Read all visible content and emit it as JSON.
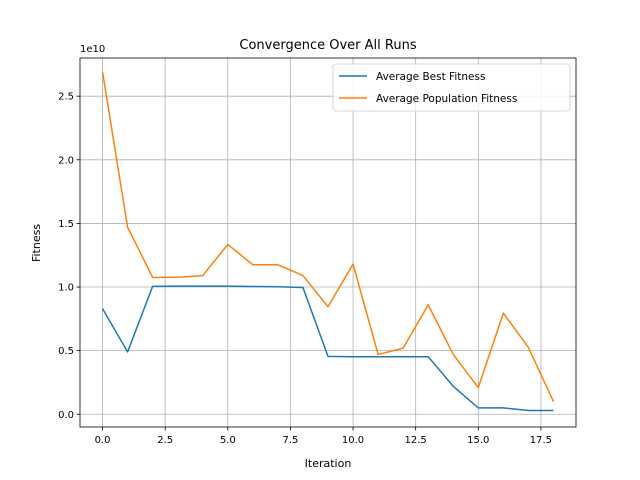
{
  "chart_data": {
    "type": "line",
    "title": "Convergence Over All Runs",
    "xlabel": "Iteration",
    "ylabel": "Fitness",
    "y_offset_label": "1e10",
    "xlim": [
      -0.9,
      18.9
    ],
    "ylim": [
      -0.1,
      2.8
    ],
    "x_ticks": [
      0,
      2.5,
      5,
      7.5,
      10,
      12.5,
      15,
      17.5
    ],
    "x_tick_labels": [
      "0.0",
      "2.5",
      "5.0",
      "7.5",
      "10.0",
      "12.5",
      "15.0",
      "17.5"
    ],
    "y_ticks": [
      0,
      0.5,
      1.0,
      1.5,
      2.0,
      2.5
    ],
    "y_tick_labels": [
      "0.0",
      "0.5",
      "1.0",
      "1.5",
      "2.0",
      "2.5"
    ],
    "grid": true,
    "legend_position": "top-right",
    "x": [
      0,
      1,
      2,
      3,
      4,
      5,
      6,
      7,
      8,
      9,
      10,
      11,
      12,
      13,
      14,
      15,
      16,
      17,
      18
    ],
    "series": [
      {
        "name": "Average Best Fitness",
        "color": "#1f77b4",
        "values": [
          0.83,
          0.49,
          1.005,
          1.007,
          1.007,
          1.007,
          1.004,
          1.002,
          0.996,
          0.455,
          0.452,
          0.452,
          0.452,
          0.452,
          0.22,
          0.05,
          0.05,
          0.03,
          0.03
        ]
      },
      {
        "name": "Average Population Fitness",
        "color": "#ff7f0e",
        "values": [
          2.69,
          1.47,
          1.075,
          1.077,
          1.09,
          1.335,
          1.175,
          1.175,
          1.09,
          0.845,
          1.18,
          0.47,
          0.52,
          0.86,
          0.47,
          0.21,
          0.795,
          0.525,
          0.1
        ]
      }
    ]
  }
}
